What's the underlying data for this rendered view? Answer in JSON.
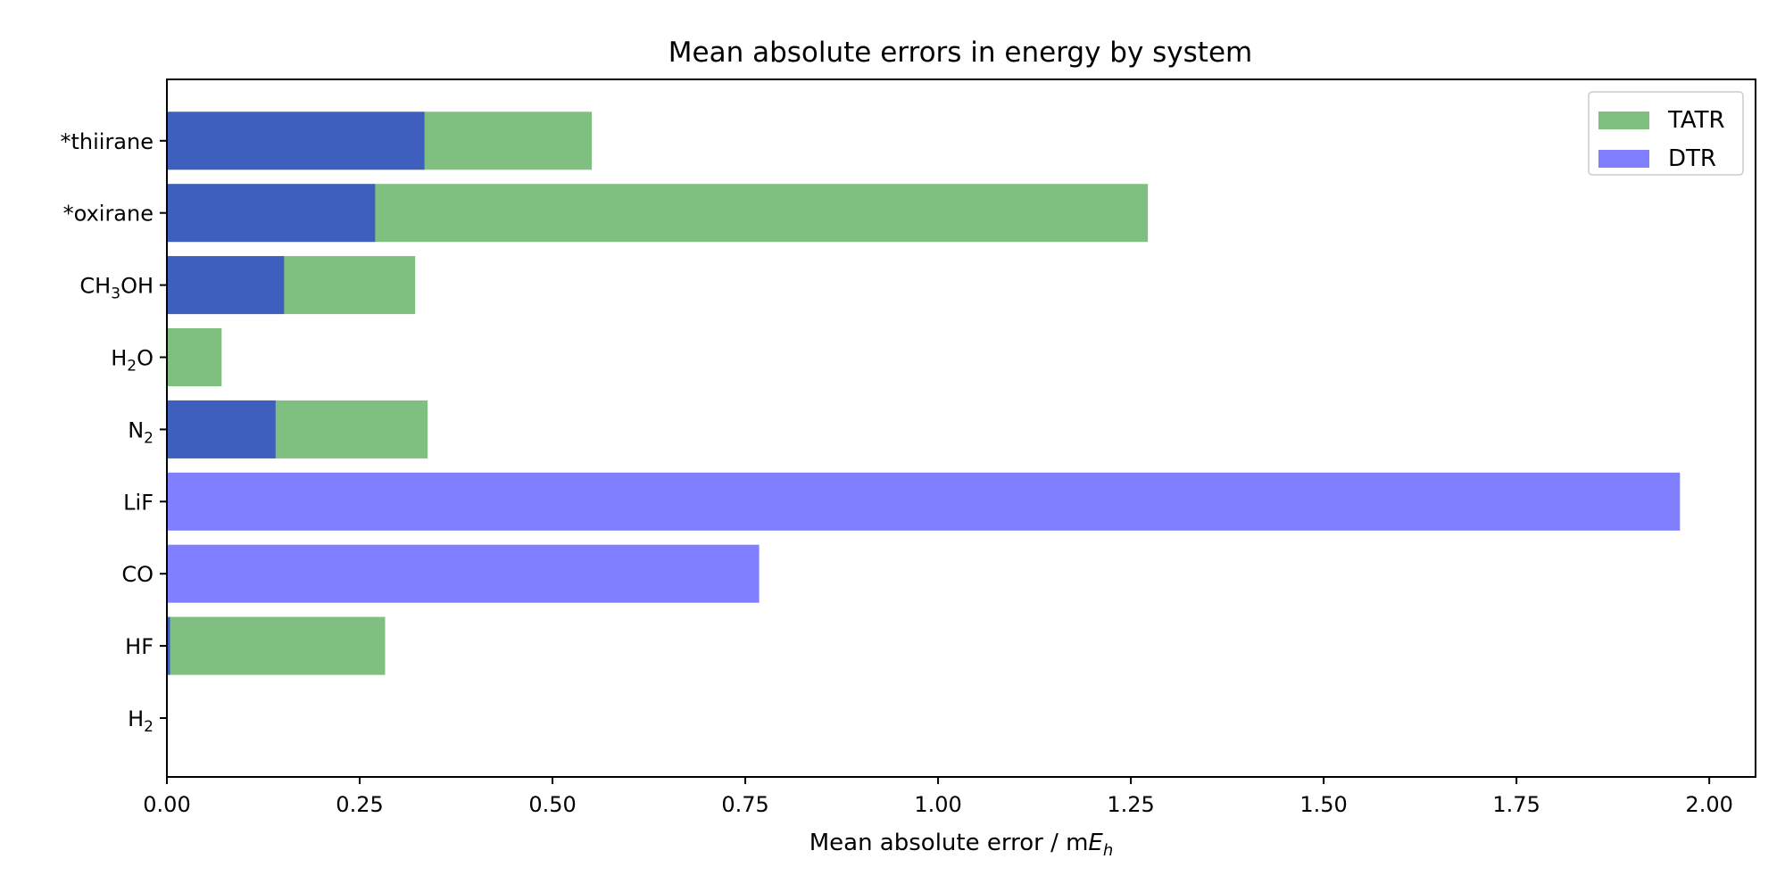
{
  "chart_data": {
    "type": "bar",
    "orientation": "horizontal",
    "title": "Mean absolute errors in energy by system",
    "xlabel": {
      "main": "Mean absolute error / m",
      "math": "E",
      "sub": "h"
    },
    "categories": [
      {
        "id": "h2",
        "parts": [
          {
            "t": "H"
          },
          {
            "t": "2",
            "sub": true
          }
        ]
      },
      {
        "id": "hf",
        "parts": [
          {
            "t": "HF"
          }
        ]
      },
      {
        "id": "co",
        "parts": [
          {
            "t": "CO"
          }
        ]
      },
      {
        "id": "lif",
        "parts": [
          {
            "t": "LiF"
          }
        ]
      },
      {
        "id": "n2",
        "parts": [
          {
            "t": "N"
          },
          {
            "t": "2",
            "sub": true
          }
        ]
      },
      {
        "id": "h2o",
        "parts": [
          {
            "t": "H"
          },
          {
            "t": "2",
            "sub": true
          },
          {
            "t": "O"
          }
        ]
      },
      {
        "id": "ch3oh",
        "parts": [
          {
            "t": "CH"
          },
          {
            "t": "3",
            "sub": true
          },
          {
            "t": "OH"
          }
        ]
      },
      {
        "id": "oxirane",
        "parts": [
          {
            "t": "*oxirane"
          }
        ]
      },
      {
        "id": "thiirane",
        "parts": [
          {
            "t": "*thiirane"
          }
        ]
      }
    ],
    "series": [
      {
        "name": "TATR",
        "color": "#008000",
        "alpha": 0.5,
        "values": [
          0.0,
          0.283,
          0.0,
          0.0,
          0.338,
          0.071,
          0.322,
          1.272,
          0.551
        ]
      },
      {
        "name": "DTR",
        "color": "#0000ff",
        "alpha": 0.5,
        "values": [
          0.001,
          0.004,
          0.768,
          1.962,
          0.141,
          0.0,
          0.152,
          0.27,
          0.334
        ]
      }
    ],
    "xlim": [
      0,
      2.06
    ],
    "xticks": [
      "0.00",
      "0.25",
      "0.50",
      "0.75",
      "1.00",
      "1.25",
      "1.50",
      "1.75",
      "2.00"
    ],
    "legend": {
      "position": "top-right",
      "entries": [
        "TATR",
        "DTR"
      ]
    },
    "grid": false
  }
}
